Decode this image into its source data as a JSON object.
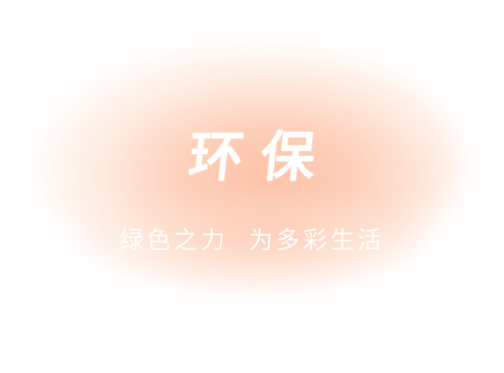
{
  "banner": {
    "title": "环保",
    "slogan_part1": "绿色之力",
    "slogan_part2": "为多彩生活"
  },
  "colors": {
    "background": "#ffffff",
    "glow": "#fcbea0",
    "text": "#ffffff"
  }
}
